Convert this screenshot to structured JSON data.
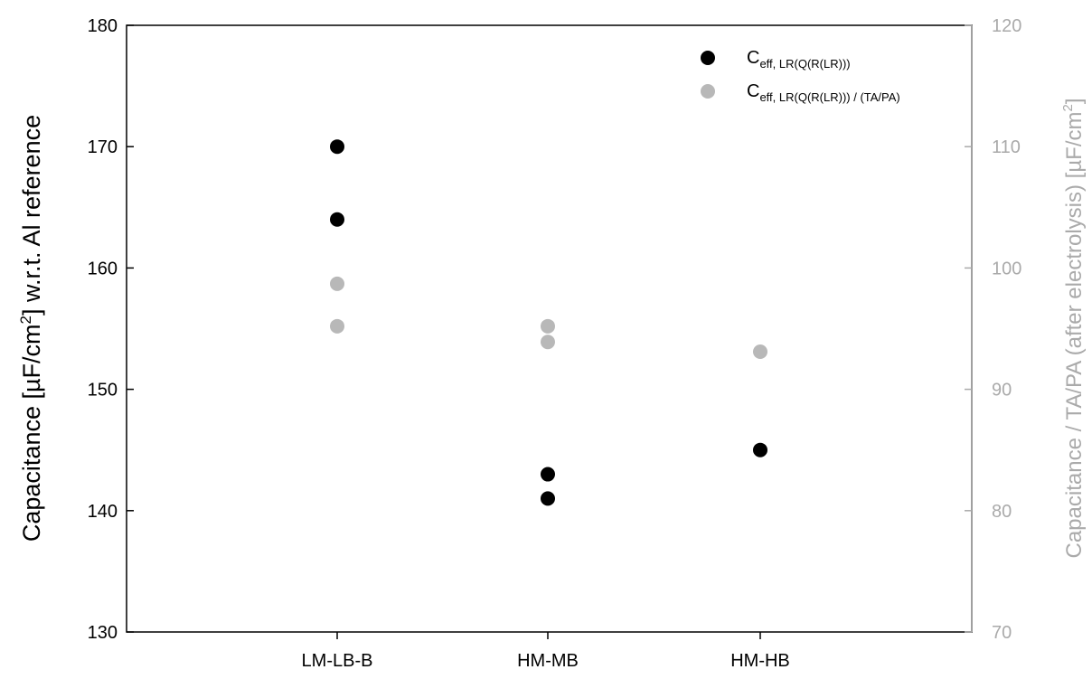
{
  "chart_data": {
    "type": "scatter",
    "categories": [
      "LM-LB-B",
      "HM-MB",
      "HM-HB"
    ],
    "y_left": {
      "label_parts": [
        "Capacitance [µF/cm",
        "2",
        "] w.r.t. Al reference"
      ],
      "ylim": [
        130,
        180
      ],
      "ticks": [
        130,
        140,
        150,
        160,
        170,
        180
      ]
    },
    "y_right": {
      "label_parts": [
        "Capacitance / TA/PA (after electrolysis) [µF/cm",
        "2",
        "]"
      ],
      "ylim": [
        70,
        120
      ],
      "ticks": [
        70,
        80,
        90,
        100,
        110,
        120
      ]
    },
    "series": [
      {
        "name_main": "C",
        "name_sub": "eff, LR(Q(R(LR)))",
        "axis": "left",
        "color": "#000000",
        "points": [
          {
            "category": "LM-LB-B",
            "value": 170
          },
          {
            "category": "LM-LB-B",
            "value": 164
          },
          {
            "category": "HM-MB",
            "value": 143
          },
          {
            "category": "HM-MB",
            "value": 141
          },
          {
            "category": "HM-HB",
            "value": 145
          }
        ]
      },
      {
        "name_main": "C",
        "name_sub": "eff, LR(Q(R(LR))) / (TA/PA)",
        "axis": "right",
        "color": "#b8b8b8",
        "points": [
          {
            "category": "LM-LB-B",
            "value": 98.7
          },
          {
            "category": "LM-LB-B",
            "value": 95.2
          },
          {
            "category": "HM-MB",
            "value": 95.2
          },
          {
            "category": "HM-MB",
            "value": 93.9
          },
          {
            "category": "HM-HB",
            "value": 93.1
          }
        ]
      }
    ],
    "legend_position": "top-right",
    "grid": false
  }
}
